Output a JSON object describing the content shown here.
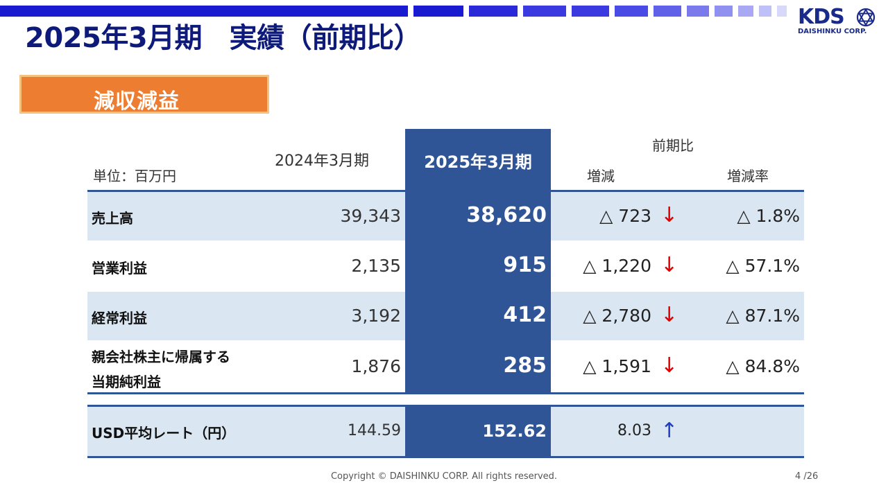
{
  "header": {
    "title": "2025年3月期　実績（前期比）",
    "logo_text": "KDS",
    "logo_sub": "DAISHINKU CORP.",
    "badge": "減収減益"
  },
  "table": {
    "unit": "単位：百万円",
    "col_2024": "2024年3月期",
    "col_2025": "2025年3月期",
    "col_prev": "前期比",
    "col_inc": "増減",
    "col_rate": "増減率",
    "rows": [
      {
        "label": "売上高",
        "v2024": "39,343",
        "v2025": "38,620",
        "inc": "△ 723",
        "arrow": "↓",
        "rate": "△ 1.8%"
      },
      {
        "label": "営業利益",
        "v2024": "2,135",
        "v2025": "915",
        "inc": "△ 1,220",
        "arrow": "↓",
        "rate": "△ 57.1%"
      },
      {
        "label": "経常利益",
        "v2024": "3,192",
        "v2025": "412",
        "inc": "△ 2,780",
        "arrow": "↓",
        "rate": "△ 87.1%"
      },
      {
        "label_line1": "親会社株主に帰属する",
        "label_line2": "当期純利益",
        "v2024": "1,876",
        "v2025": "285",
        "inc": "△ 1,591",
        "arrow": "↓",
        "rate": "△ 84.8%"
      }
    ],
    "usd": {
      "label": "USD平均レート（円）",
      "v2024": "144.59",
      "v2025": "152.62",
      "inc": "8.03",
      "arrow": "↑"
    }
  },
  "footer": {
    "copyright": "Copyright © DAISHINKU CORP. All rights reserved.",
    "page": "4 /26"
  },
  "colors": {
    "navy": "#0e1a7a",
    "accent_orange": "#ed7d31",
    "highlight_blue": "#2f5597",
    "row_shade": "#dae6f2",
    "down_red": "#e00000",
    "up_blue": "#1f3fbf"
  }
}
